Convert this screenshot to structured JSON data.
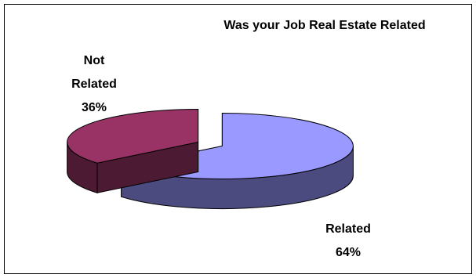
{
  "chart_data": {
    "type": "pie",
    "style": "3d-exploded",
    "title": "Was your Job Real Estate Related",
    "slices": [
      {
        "label": "Related",
        "value": 64,
        "percent_label": "64%",
        "color": "#9999FF",
        "side_color": "#4B4B80"
      },
      {
        "label": "Not Related",
        "value": 36,
        "percent_label": "36%",
        "color": "#993366",
        "side_color": "#4D1A33"
      }
    ],
    "legend": "none"
  }
}
